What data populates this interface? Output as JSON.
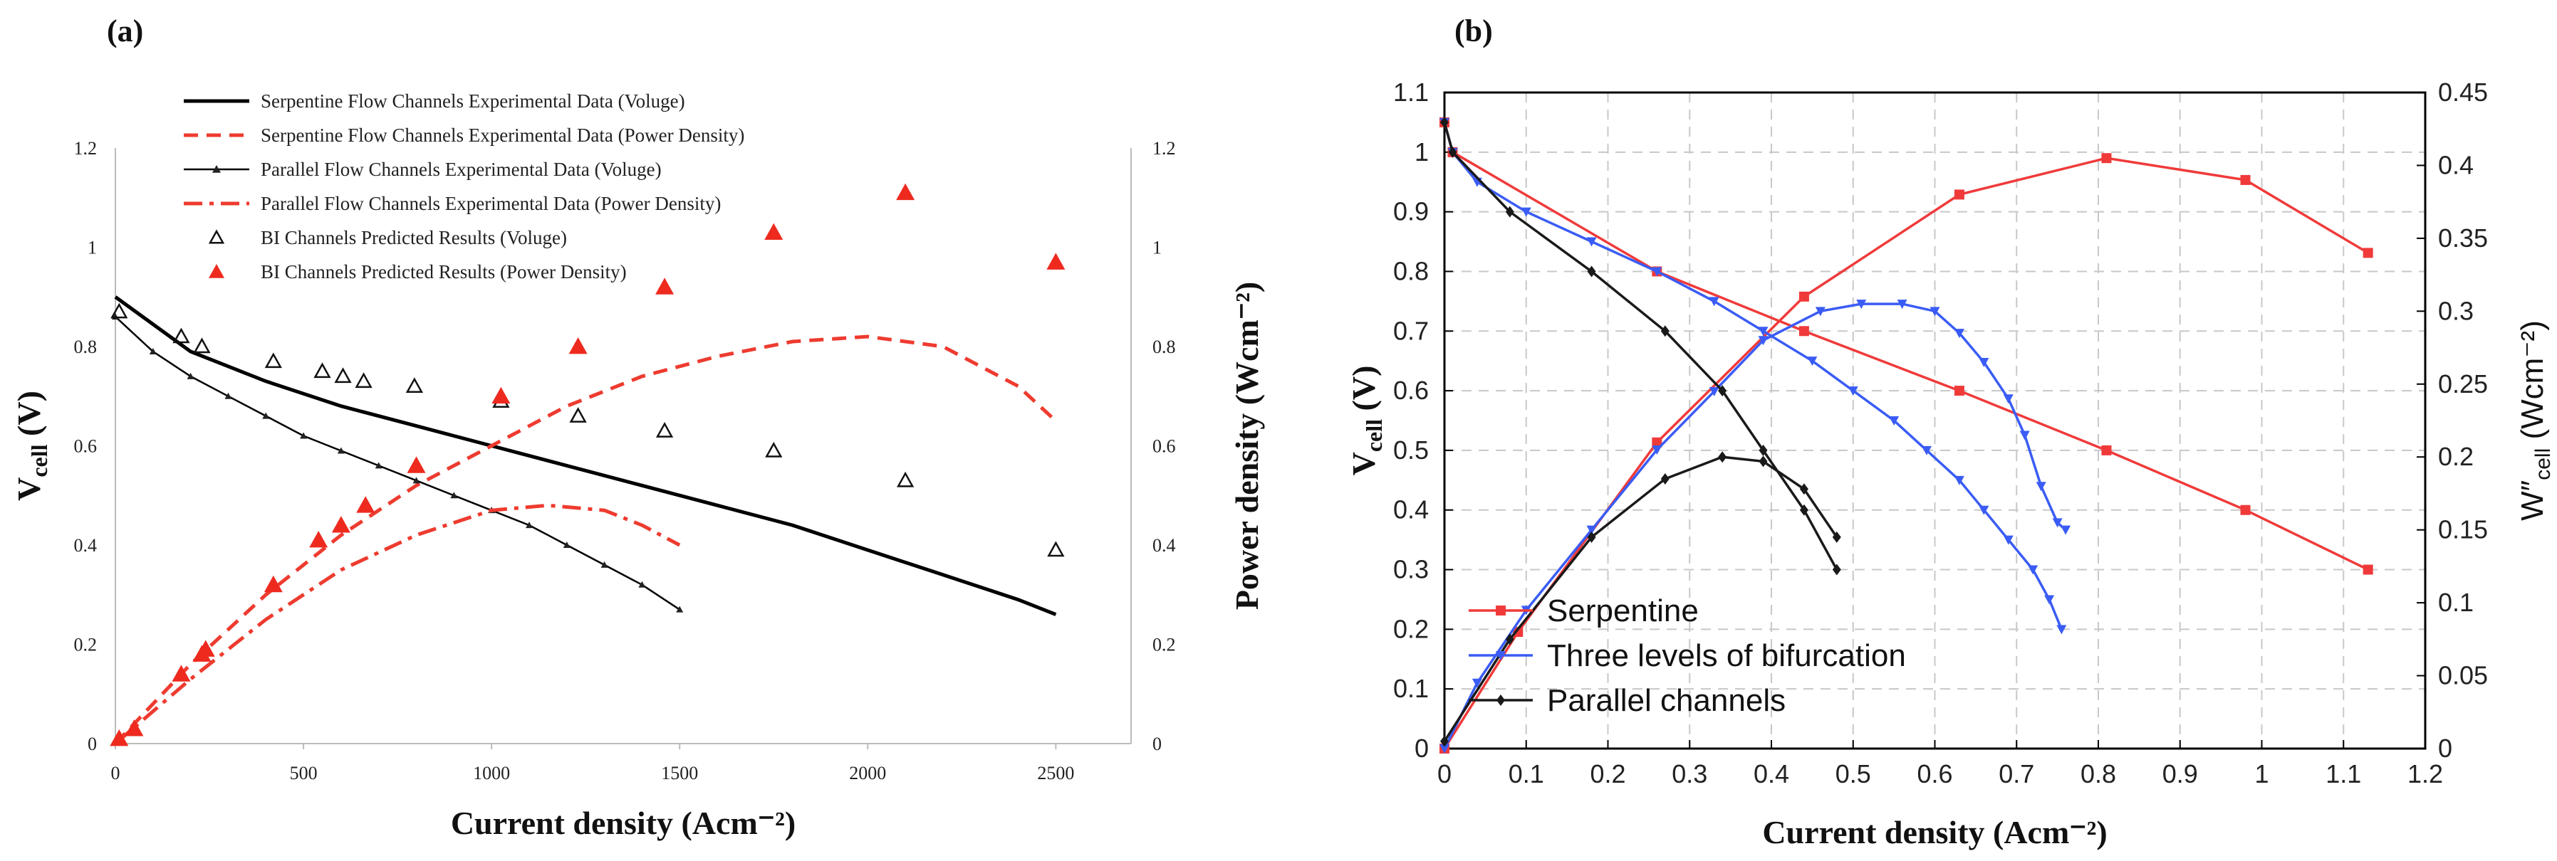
{
  "panels": {
    "a": {
      "tag": "(a)"
    },
    "b": {
      "tag": "(b)"
    }
  },
  "chart_data": [
    {
      "id": "a",
      "type": "line",
      "title": "",
      "xlabel": "Current density (Acm⁻²)",
      "ylabel": "V",
      "ylabel_sub": "cell",
      "ylabel_unit": " (V)",
      "y2label": "Power density (Wcm⁻²)",
      "xlim": [
        0,
        2700
      ],
      "ylim": [
        0,
        1.2
      ],
      "y2lim": [
        0,
        1.2
      ],
      "x_ticks": [
        "0",
        "500",
        "1000",
        "1500",
        "2000",
        "2500"
      ],
      "y_ticks": [
        "0",
        "0.2",
        "0.4",
        "0.6",
        "0.8",
        "1",
        "1.2"
      ],
      "y2_ticks": [
        "0",
        "0.2",
        "0.4",
        "0.6",
        "0.8",
        "1",
        "1.2"
      ],
      "legend_position": "top-left",
      "colors": {
        "serpentine": "#000000",
        "power": "#ee3b2f",
        "predicted": "#111111",
        "predicted_power": "#ee2a1f"
      },
      "series": [
        {
          "name": "Serpentine Flow Channels Experimental Data (Voluge)",
          "style": "solid",
          "color": "#000000",
          "x": [
            0,
            200,
            400,
            600,
            800,
            1000,
            1200,
            1400,
            1600,
            1800,
            2000,
            2200,
            2400,
            2500
          ],
          "y": [
            0.9,
            0.79,
            0.73,
            0.68,
            0.64,
            0.6,
            0.56,
            0.52,
            0.48,
            0.44,
            0.39,
            0.34,
            0.29,
            0.26
          ]
        },
        {
          "name": "Serpentine Flow Channels Experimental Data (Power Density)",
          "style": "dashed",
          "color": "#ee3b2f",
          "x": [
            0,
            200,
            400,
            600,
            800,
            1000,
            1200,
            1400,
            1600,
            1800,
            2000,
            2200,
            2400,
            2500
          ],
          "y": [
            0.0,
            0.16,
            0.3,
            0.42,
            0.52,
            0.6,
            0.68,
            0.74,
            0.78,
            0.81,
            0.82,
            0.8,
            0.72,
            0.65
          ]
        },
        {
          "name": "Parallel Flow Channels Experimental Data (Voluge)",
          "style": "marker-line",
          "color": "#000000",
          "x": [
            0,
            100,
            200,
            300,
            400,
            500,
            600,
            700,
            800,
            900,
            1000,
            1100,
            1200,
            1300,
            1400,
            1500
          ],
          "y": [
            0.86,
            0.79,
            0.74,
            0.7,
            0.66,
            0.62,
            0.59,
            0.56,
            0.53,
            0.5,
            0.47,
            0.44,
            0.4,
            0.36,
            0.32,
            0.27
          ]
        },
        {
          "name": "Parallel Flow Channels Experimental Data (Power Density)",
          "style": "dashdot",
          "color": "#ee3b2f",
          "x": [
            0,
            200,
            400,
            600,
            800,
            1000,
            1150,
            1300,
            1400,
            1500
          ],
          "y": [
            0.0,
            0.13,
            0.25,
            0.35,
            0.42,
            0.47,
            0.48,
            0.47,
            0.44,
            0.4
          ]
        },
        {
          "name": "BI Channels Predicted Results (Voluge)",
          "style": "open-triangle",
          "color": "#111111",
          "x": [
            10,
            175,
            230,
            420,
            550,
            605,
            660,
            795,
            1025,
            1230,
            1460,
            1750,
            2100,
            2500
          ],
          "y": [
            0.87,
            0.82,
            0.8,
            0.77,
            0.75,
            0.74,
            0.73,
            0.72,
            0.69,
            0.66,
            0.63,
            0.59,
            0.53,
            0.39
          ]
        },
        {
          "name": "BI Channels Predicted Results (Power Density)",
          "style": "filled-triangle",
          "color": "#ee2a1f",
          "x": [
            10,
            50,
            175,
            230,
            240,
            420,
            540,
            600,
            665,
            800,
            1025,
            1230,
            1460,
            1750,
            2100,
            2500
          ],
          "y": [
            0.01,
            0.03,
            0.14,
            0.18,
            0.19,
            0.32,
            0.41,
            0.44,
            0.48,
            0.56,
            0.7,
            0.8,
            0.92,
            1.03,
            1.11,
            0.97
          ]
        }
      ]
    },
    {
      "id": "b",
      "type": "line",
      "title": "",
      "xlabel": "Current density (Acm⁻²)",
      "ylabel": "V",
      "ylabel_sub": "cell",
      "ylabel_unit": " (V)",
      "y2label": "W″",
      "y2label_sub": "cell",
      "y2label_unit": " (Wcm⁻²)",
      "xlim": [
        0,
        1.2
      ],
      "ylim": [
        0,
        1.1
      ],
      "y2lim": [
        0,
        0.45
      ],
      "x_ticks": [
        "0",
        "0.1",
        "0.2",
        "0.3",
        "0.4",
        "0.5",
        "0.6",
        "0.7",
        "0.8",
        "0.9",
        "1",
        "1.1",
        "1.2"
      ],
      "y_ticks": [
        "0",
        "0.1",
        "0.2",
        "0.3",
        "0.4",
        "0.5",
        "0.6",
        "0.7",
        "0.8",
        "0.9",
        "1",
        "1.1"
      ],
      "y2_ticks": [
        "0",
        "0.05",
        "0.1",
        "0.15",
        "0.2",
        "0.25",
        "0.3",
        "0.35",
        "0.4",
        "0.45"
      ],
      "grid": true,
      "legend_position": "bottom-left",
      "series": [
        {
          "name": "Serpentine",
          "color": "#f03a3a",
          "axis": "left",
          "marker": "square",
          "x": [
            0.0,
            0.01,
            0.26,
            0.44,
            0.63,
            0.81,
            0.98,
            1.13
          ],
          "y": [
            1.05,
            1.0,
            0.8,
            0.7,
            0.6,
            0.5,
            0.4,
            0.3
          ]
        },
        {
          "name": "Serpentine (power)",
          "color": "#f03a3a",
          "axis": "right",
          "marker": "square",
          "in_legend": false,
          "x": [
            0.0,
            0.09,
            0.26,
            0.44,
            0.63,
            0.81,
            0.98,
            1.13
          ],
          "y": [
            0.0,
            0.08,
            0.21,
            0.31,
            0.38,
            0.405,
            0.39,
            0.34
          ]
        },
        {
          "name": "Three levels of bifurcation",
          "color": "#3a5cf5",
          "axis": "left",
          "marker": "triangle",
          "x": [
            0.0,
            0.01,
            0.04,
            0.1,
            0.18,
            0.26,
            0.33,
            0.39,
            0.45,
            0.5,
            0.55,
            0.59,
            0.63,
            0.66,
            0.69,
            0.72,
            0.74,
            0.755
          ],
          "y": [
            1.05,
            1.0,
            0.95,
            0.9,
            0.85,
            0.8,
            0.75,
            0.7,
            0.65,
            0.6,
            0.55,
            0.5,
            0.45,
            0.4,
            0.35,
            0.3,
            0.25,
            0.2
          ]
        },
        {
          "name": "Three levels of bifurcation (power)",
          "color": "#3a5cf5",
          "axis": "right",
          "marker": "triangle",
          "in_legend": false,
          "x": [
            0.0,
            0.04,
            0.1,
            0.18,
            0.26,
            0.33,
            0.39,
            0.46,
            0.51,
            0.56,
            0.6,
            0.63,
            0.66,
            0.69,
            0.71,
            0.73,
            0.75,
            0.76
          ],
          "y": [
            0.0,
            0.045,
            0.095,
            0.15,
            0.205,
            0.245,
            0.28,
            0.3,
            0.305,
            0.305,
            0.3,
            0.285,
            0.265,
            0.24,
            0.215,
            0.18,
            0.155,
            0.15
          ]
        },
        {
          "name": "Parallel channels",
          "color": "#1a1a1a",
          "axis": "left",
          "marker": "diamond",
          "x": [
            0.0,
            0.01,
            0.08,
            0.18,
            0.27,
            0.34,
            0.39,
            0.44,
            0.48
          ],
          "y": [
            1.05,
            1.0,
            0.9,
            0.8,
            0.7,
            0.6,
            0.5,
            0.4,
            0.3
          ]
        },
        {
          "name": "Parallel channels (power)",
          "color": "#1a1a1a",
          "axis": "right",
          "marker": "diamond",
          "in_legend": false,
          "x": [
            0.0,
            0.08,
            0.18,
            0.27,
            0.34,
            0.39,
            0.44,
            0.48
          ],
          "y": [
            0.005,
            0.075,
            0.145,
            0.185,
            0.2,
            0.197,
            0.178,
            0.145
          ]
        }
      ]
    }
  ]
}
